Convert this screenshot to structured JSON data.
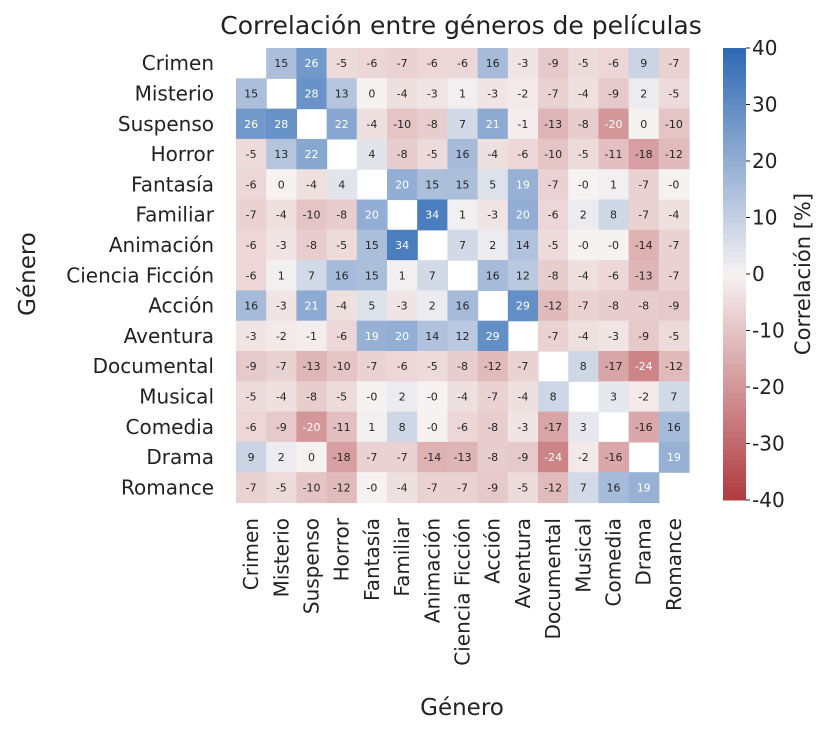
{
  "chart_data": {
    "type": "heatmap",
    "title": "Correlación entre géneros de películas",
    "xlabel": "Género",
    "ylabel": "Género",
    "colorbar_label": "Correlación [%]",
    "colorbar_ticks": [
      "40",
      "30",
      "20",
      "10",
      "0",
      "-10",
      "-20",
      "-30",
      "-40"
    ],
    "vmin": -40,
    "vmax": 40,
    "colormap": {
      "neg": "#b03a3f",
      "mid": "#f6f2f2",
      "pos": "#2d69b5"
    },
    "grid": false,
    "categories": [
      "Crimen",
      "Misterio",
      "Suspenso",
      "Horror",
      "Fantasía",
      "Familiar",
      "Animación",
      "Ciencia Ficción",
      "Acción",
      "Aventura",
      "Documental",
      "Musical",
      "Comedia",
      "Drama",
      "Romance"
    ],
    "values": [
      [
        null,
        15,
        26,
        -5,
        -6,
        -7,
        -6,
        -6,
        16,
        -3,
        -9,
        -5,
        -6,
        9,
        -7
      ],
      [
        15,
        null,
        28,
        13,
        0,
        -4,
        -3,
        1,
        -3,
        -2,
        -7,
        -4,
        -9,
        2,
        -5
      ],
      [
        26,
        28,
        null,
        22,
        -4,
        -10,
        -8,
        7,
        21,
        -1,
        -13,
        -8,
        -20,
        0,
        -10
      ],
      [
        -5,
        13,
        22,
        null,
        4,
        -8,
        -5,
        16,
        -4,
        -6,
        -10,
        -5,
        -11,
        -18,
        -12
      ],
      [
        -6,
        0,
        -4,
        4,
        null,
        20,
        15,
        15,
        5,
        19,
        -7,
        0,
        1,
        -7,
        0
      ],
      [
        -7,
        -4,
        -10,
        -8,
        20,
        null,
        34,
        1,
        -3,
        20,
        -6,
        2,
        8,
        -7,
        -4
      ],
      [
        -6,
        -3,
        -8,
        -5,
        15,
        34,
        null,
        7,
        2,
        14,
        -5,
        0,
        0,
        -14,
        -7
      ],
      [
        -6,
        1,
        7,
        16,
        15,
        1,
        7,
        null,
        16,
        12,
        -8,
        -4,
        -6,
        -13,
        -7
      ],
      [
        16,
        -3,
        21,
        -4,
        5,
        -3,
        2,
        16,
        null,
        29,
        -12,
        -7,
        -8,
        -8,
        -9
      ],
      [
        -3,
        -2,
        -1,
        -6,
        19,
        20,
        14,
        12,
        29,
        null,
        -7,
        -4,
        -3,
        -9,
        -5
      ],
      [
        -9,
        -7,
        -13,
        -10,
        -7,
        -6,
        -5,
        -8,
        -12,
        -7,
        null,
        8,
        -17,
        -24,
        -12
      ],
      [
        -5,
        -4,
        -8,
        -5,
        0,
        2,
        0,
        -4,
        -7,
        -4,
        8,
        null,
        3,
        -2,
        7
      ],
      [
        -6,
        -9,
        -20,
        -11,
        1,
        8,
        0,
        -6,
        -8,
        -3,
        -17,
        3,
        null,
        -16,
        16
      ],
      [
        9,
        2,
        0,
        -18,
        -7,
        -7,
        -14,
        -13,
        -8,
        -9,
        -24,
        -2,
        -16,
        null,
        19
      ],
      [
        -7,
        -5,
        -10,
        -12,
        0,
        -4,
        -7,
        -7,
        -9,
        -5,
        -12,
        7,
        16,
        19,
        null
      ]
    ],
    "labels": [
      [
        "",
        "15",
        "26",
        "-5",
        "-6",
        "-7",
        "-6",
        "-6",
        "16",
        "-3",
        "-9",
        "-5",
        "-6",
        "9",
        "-7"
      ],
      [
        "15",
        "",
        "28",
        "13",
        "0",
        "-4",
        "-3",
        "1",
        "-3",
        "-2",
        "-7",
        "-4",
        "-9",
        "2",
        "-5"
      ],
      [
        "26",
        "28",
        "",
        "22",
        "-4",
        "-10",
        "-8",
        "7",
        "21",
        "-1",
        "-13",
        "-8",
        "-20",
        "0",
        "-10"
      ],
      [
        "-5",
        "13",
        "22",
        "",
        "4",
        "-8",
        "-5",
        "16",
        "-4",
        "-6",
        "-10",
        "-5",
        "-11",
        "-18",
        "-12"
      ],
      [
        "-6",
        "0",
        "-4",
        "4",
        "",
        "20",
        "15",
        "15",
        "5",
        "19",
        "-7",
        "-0",
        "1",
        "-7",
        "-0"
      ],
      [
        "-7",
        "-4",
        "-10",
        "-8",
        "20",
        "",
        "34",
        "1",
        "-3",
        "20",
        "-6",
        "2",
        "8",
        "-7",
        "-4"
      ],
      [
        "-6",
        "-3",
        "-8",
        "-5",
        "15",
        "34",
        "",
        "7",
        "2",
        "14",
        "-5",
        "-0",
        "-0",
        "-14",
        "-7"
      ],
      [
        "-6",
        "1",
        "7",
        "16",
        "15",
        "1",
        "7",
        "",
        "16",
        "12",
        "-8",
        "-4",
        "-6",
        "-13",
        "-7"
      ],
      [
        "16",
        "-3",
        "21",
        "-4",
        "5",
        "-3",
        "2",
        "16",
        "",
        "29",
        "-12",
        "-7",
        "-8",
        "-8",
        "-9"
      ],
      [
        "-3",
        "-2",
        "-1",
        "-6",
        "19",
        "20",
        "14",
        "12",
        "29",
        "",
        "-7",
        "-4",
        "-3",
        "-9",
        "-5"
      ],
      [
        "-9",
        "-7",
        "-13",
        "-10",
        "-7",
        "-6",
        "-5",
        "-8",
        "-12",
        "-7",
        "",
        "8",
        "-17",
        "-24",
        "-12"
      ],
      [
        "-5",
        "-4",
        "-8",
        "-5",
        "-0",
        "2",
        "-0",
        "-4",
        "-7",
        "-4",
        "8",
        "",
        "3",
        "-2",
        "7"
      ],
      [
        "-6",
        "-9",
        "-20",
        "-11",
        "1",
        "8",
        "-0",
        "-6",
        "-8",
        "-3",
        "-17",
        "3",
        "",
        "-16",
        "16"
      ],
      [
        "9",
        "2",
        "0",
        "-18",
        "-7",
        "-7",
        "-14",
        "-13",
        "-8",
        "-9",
        "-24",
        "-2",
        "-16",
        "",
        "19"
      ],
      [
        "-7",
        "-5",
        "-10",
        "-12",
        "-0",
        "-4",
        "-7",
        "-7",
        "-9",
        "-5",
        "-12",
        "7",
        "16",
        "19",
        ""
      ]
    ]
  }
}
